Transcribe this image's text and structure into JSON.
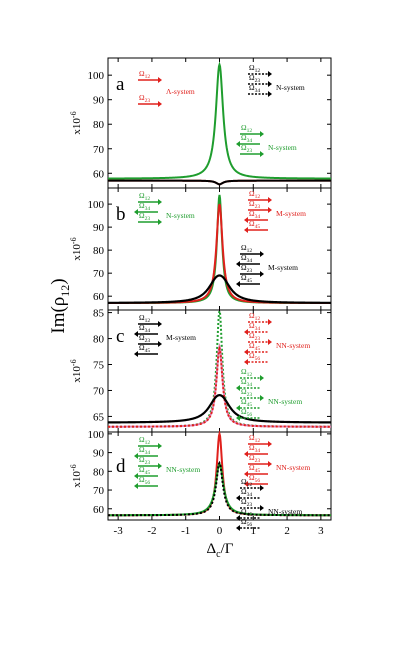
{
  "colors": {
    "red": "#e0201c",
    "green": "#1f9d2e",
    "black": "#000000",
    "pink": "#e07fb0",
    "darkred": "#8b1a2a"
  },
  "figure": {
    "ylabel_main": "Im(ρ",
    "ylabel_main_sub": "12",
    "ylabel_main_tail": ")",
    "xlabel": "Δ",
    "xlabel_sub": "c",
    "xlabel_tail": "/Γ",
    "x_ticks": [
      "-3",
      "-2",
      "-1",
      "0",
      "1",
      "2",
      "3"
    ]
  },
  "chart_data": [
    {
      "panel": "a",
      "type": "line",
      "ylabel": "x10",
      "ylabel_exp": "-6",
      "ylim": [
        54,
        107
      ],
      "yticks": [
        60,
        70,
        80,
        90,
        100
      ],
      "xlim": [
        -3.3,
        3.3
      ],
      "series": [
        {
          "name": "Λ-system",
          "color": "red",
          "style": "solid",
          "baseline": 57.0,
          "peak": -1.5,
          "width": 0.12
        },
        {
          "name": "N-system",
          "color": "black",
          "style": "solid",
          "baseline": 57.0,
          "peak": -1.5,
          "width": 0.12
        },
        {
          "name": "N-system (green)",
          "color": "green",
          "style": "solid",
          "baseline": 57.8,
          "peak": 46.5,
          "width": 0.13
        }
      ],
      "legends": [
        {
          "side": "left",
          "color": "red",
          "rows": [
            {
              "sym": "Ω",
              "sub": "12",
              "arrow": "right"
            },
            {
              "sym": "Ω",
              "sub": "23",
              "arrow": "right"
            }
          ],
          "label": "Λ-system"
        },
        {
          "side": "right",
          "color": "black",
          "rows": [
            {
              "sym": "Ω",
              "sub": "12",
              "arrow": "right-dash"
            },
            {
              "sym": "Ω",
              "sub": "23",
              "arrow": "right-dash"
            },
            {
              "sym": "Ω",
              "sub": "34",
              "arrow": "right-dash"
            }
          ],
          "label": "N-system"
        },
        {
          "side": "right2",
          "color": "green",
          "rows": [
            {
              "sym": "Ω",
              "sub": "12",
              "arrow": "right"
            },
            {
              "sym": "Ω",
              "sub": "34",
              "arrow": "left"
            },
            {
              "sym": "Ω",
              "sub": "23",
              "arrow": "right"
            }
          ],
          "label": "N-system"
        }
      ]
    },
    {
      "panel": "b",
      "type": "line",
      "ylabel": "x10",
      "ylabel_exp": "-6",
      "ylim": [
        54,
        107
      ],
      "yticks": [
        60,
        70,
        80,
        90,
        100
      ],
      "xlim": [
        -3.3,
        3.3
      ],
      "series": [
        {
          "name": "N-system",
          "color": "green",
          "style": "solid",
          "baseline": 57.0,
          "peak": 47.0,
          "width": 0.09
        },
        {
          "name": "M-system (red)",
          "color": "red",
          "style": "solid",
          "baseline": 57.0,
          "peak": 43.0,
          "width": 0.11
        },
        {
          "name": "M-system",
          "color": "black",
          "style": "split",
          "baseline": 57.0,
          "peak": 12.0,
          "width": 0.3,
          "split": 0.1
        }
      ],
      "legends": [
        {
          "side": "left",
          "color": "green",
          "rows": [
            {
              "sym": "Ω",
              "sub": "12",
              "arrow": "right"
            },
            {
              "sym": "Ω",
              "sub": "34",
              "arrow": "left"
            },
            {
              "sym": "Ω",
              "sub": "23",
              "arrow": "right"
            }
          ],
          "label": "N-system"
        },
        {
          "side": "right",
          "color": "red",
          "rows": [
            {
              "sym": "Ω",
              "sub": "12",
              "arrow": "right"
            },
            {
              "sym": "Ω",
              "sub": "23",
              "arrow": "right"
            },
            {
              "sym": "Ω",
              "sub": "34",
              "arrow": "left"
            },
            {
              "sym": "Ω",
              "sub": "45",
              "arrow": "left"
            }
          ],
          "label": "M-system"
        },
        {
          "side": "right2",
          "color": "black",
          "rows": [
            {
              "sym": "Ω",
              "sub": "12",
              "arrow": "right"
            },
            {
              "sym": "Ω",
              "sub": "34",
              "arrow": "left"
            },
            {
              "sym": "Ω",
              "sub": "23",
              "arrow": "right"
            },
            {
              "sym": "Ω",
              "sub": "45",
              "arrow": "left"
            }
          ],
          "label": "M-system"
        }
      ]
    },
    {
      "panel": "c",
      "type": "line",
      "ylabel": "x10",
      "ylabel_exp": "-6",
      "ylim": [
        62,
        85.5
      ],
      "yticks": [
        65,
        70,
        75,
        80,
        85
      ],
      "xlim": [
        -3.3,
        3.3
      ],
      "series": [
        {
          "name": "NN-system (green)",
          "color": "green",
          "style": "dotted",
          "baseline": 63.0,
          "peak": 22.5,
          "width": 0.1
        },
        {
          "name": "NN-system",
          "color": "pink",
          "style": "solid",
          "baseline": 63.0,
          "peak": 15.5,
          "width": 0.11
        },
        {
          "name": "NN-system (red)",
          "color": "red",
          "style": "dotted",
          "baseline": 63.0,
          "peak": 15.0,
          "width": 0.11
        },
        {
          "name": "M-system",
          "color": "black",
          "style": "split",
          "baseline": 63.8,
          "peak": 5.3,
          "width": 0.3,
          "split": 0.1
        }
      ],
      "legends": [
        {
          "side": "left",
          "color": "black",
          "rows": [
            {
              "sym": "Ω",
              "sub": "12",
              "arrow": "right"
            },
            {
              "sym": "Ω",
              "sub": "34",
              "arrow": "left"
            },
            {
              "sym": "Ω",
              "sub": "23",
              "arrow": "right"
            },
            {
              "sym": "Ω",
              "sub": "45",
              "arrow": "left"
            }
          ],
          "label": "M-system"
        },
        {
          "side": "right",
          "color": "red",
          "rows": [
            {
              "sym": "Ω",
              "sub": "12",
              "arrow": "right-dash"
            },
            {
              "sym": "Ω",
              "sub": "34",
              "arrow": "left-dash"
            },
            {
              "sym": "Ω",
              "sub": "23",
              "arrow": "right-dash"
            },
            {
              "sym": "Ω",
              "sub": "45",
              "arrow": "left-dash"
            },
            {
              "sym": "Ω",
              "sub": "56",
              "arrow": "left-dash"
            }
          ],
          "label": "NN-system"
        },
        {
          "side": "right2",
          "color": "green",
          "rows": [
            {
              "sym": "Ω",
              "sub": "12",
              "arrow": "right-dash"
            },
            {
              "sym": "Ω",
              "sub": "34",
              "arrow": "left-dash"
            },
            {
              "sym": "Ω",
              "sub": "23",
              "arrow": "right-dash"
            },
            {
              "sym": "Ω",
              "sub": "45",
              "arrow": "left-dash"
            },
            {
              "sym": "Ω",
              "sub": "56",
              "arrow": "left-dash"
            }
          ],
          "label": "NN-system"
        }
      ]
    },
    {
      "panel": "d",
      "type": "line",
      "ylabel": "x10",
      "ylabel_exp": "-6",
      "ylim": [
        54,
        101
      ],
      "yticks": [
        60,
        70,
        80,
        90,
        100
      ],
      "xlim": [
        -3.3,
        3.3
      ],
      "series": [
        {
          "name": "NN-system (red)",
          "color": "red",
          "style": "solid",
          "baseline": 56.5,
          "peak": 43.5,
          "width": 0.1
        },
        {
          "name": "NN-system (green)",
          "color": "green",
          "style": "solid",
          "baseline": 56.5,
          "peak": 27.5,
          "width": 0.14
        },
        {
          "name": "NN-system",
          "color": "black",
          "style": "dotted",
          "baseline": 56.5,
          "peak": 28.0,
          "width": 0.12
        }
      ],
      "legends": [
        {
          "side": "left",
          "color": "green",
          "rows": [
            {
              "sym": "Ω",
              "sub": "12",
              "arrow": "right"
            },
            {
              "sym": "Ω",
              "sub": "34",
              "arrow": "left"
            },
            {
              "sym": "Ω",
              "sub": "23",
              "arrow": "right"
            },
            {
              "sym": "Ω",
              "sub": "45",
              "arrow": "left"
            },
            {
              "sym": "Ω",
              "sub": "56",
              "arrow": "left"
            }
          ],
          "label": "NN-system"
        },
        {
          "side": "right",
          "color": "red",
          "rows": [
            {
              "sym": "Ω",
              "sub": "12",
              "arrow": "right"
            },
            {
              "sym": "Ω",
              "sub": "34",
              "arrow": "left"
            },
            {
              "sym": "Ω",
              "sub": "23",
              "arrow": "right"
            },
            {
              "sym": "Ω",
              "sub": "45",
              "arrow": "left"
            },
            {
              "sym": "Ω",
              "sub": "56",
              "arrow": "left"
            }
          ],
          "label": "NN-system"
        },
        {
          "side": "right2",
          "color": "black",
          "rows": [
            {
              "sym": "Ω",
              "sub": "12",
              "arrow": "right-dash"
            },
            {
              "sym": "Ω",
              "sub": "34",
              "arrow": "left-dash"
            },
            {
              "sym": "Ω",
              "sub": "23",
              "arrow": "right-dash"
            },
            {
              "sym": "Ω",
              "sub": "45",
              "arrow": "left-dash"
            },
            {
              "sym": "Ω",
              "sub": "56",
              "arrow": "left-dash"
            }
          ],
          "label": "NN-system"
        }
      ]
    }
  ]
}
